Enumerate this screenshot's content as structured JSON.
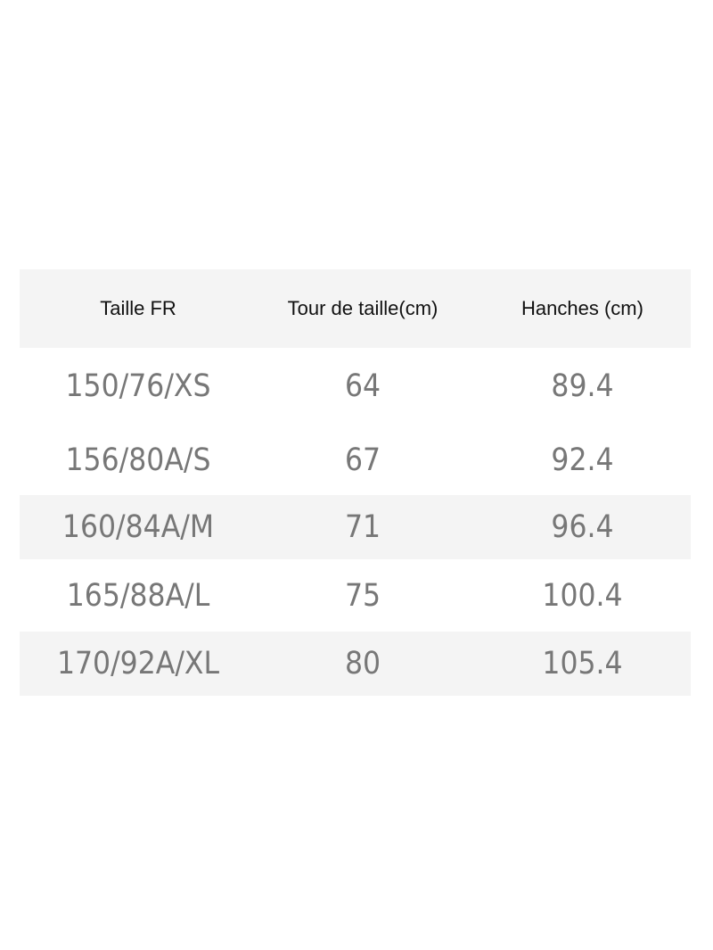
{
  "table": {
    "headers": [
      "Taille FR",
      "Tour de taille(cm)",
      "Hanches (cm)"
    ],
    "rows": [
      [
        "150/76/XS",
        "64",
        "89.4"
      ],
      [
        "156/80A/S",
        "67",
        "92.4"
      ],
      [
        "160/84A/M",
        "71",
        "96.4"
      ],
      [
        "165/88A/L",
        "75",
        "100.4"
      ],
      [
        "170/92A/XL",
        "80",
        "105.4"
      ]
    ]
  },
  "colors": {
    "header_bg": "#f4f4f4",
    "stripe_bg": "#f4f4f4",
    "value_text": "#777777",
    "header_text": "#111111"
  }
}
